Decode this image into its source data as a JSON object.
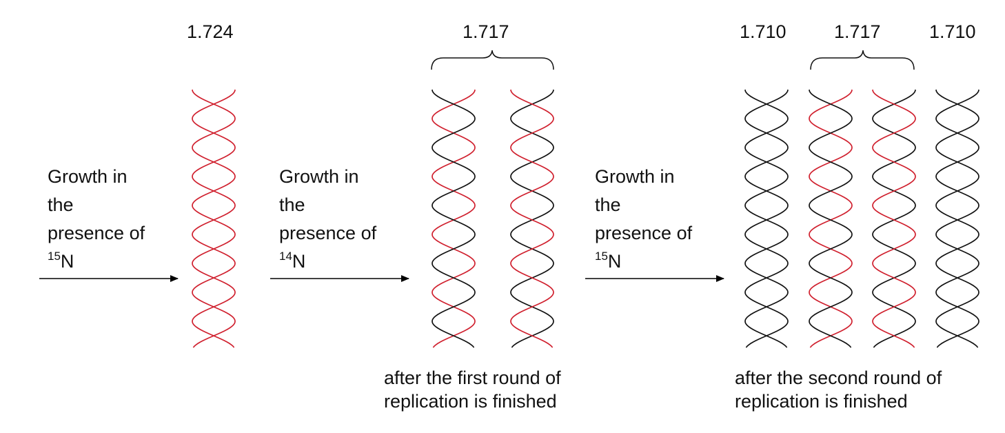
{
  "densities": {
    "initial": "1.724",
    "round1": "1.717",
    "round2_outer_left": "1.710",
    "round2_middle": "1.717",
    "round2_outer_right": "1.710"
  },
  "steps": [
    {
      "line1": "Growth in",
      "line2": "the",
      "line3": "presence of",
      "isotope_mass": "15",
      "isotope_element": "N"
    },
    {
      "line1": "Growth in",
      "line2": "the",
      "line3": "presence of",
      "isotope_mass": "14",
      "isotope_element": "N"
    },
    {
      "line1": "Growth in",
      "line2": "the",
      "line3": "presence of",
      "isotope_mass": "15",
      "isotope_element": "N"
    }
  ],
  "captions": {
    "round1_line1": "after the first round of",
    "round1_line2": "replication is finished",
    "round2_line1": "after the second round of",
    "round2_line2": "replication is finished"
  },
  "colors": {
    "heavy_strand": "#d0202e",
    "light_strand": "#111111",
    "arrow": "#000000"
  },
  "helices": [
    {
      "name": "helix-parental",
      "strand_a": "heavy",
      "strand_b": "heavy"
    },
    {
      "name": "helix-round1-a",
      "strand_a": "heavy",
      "strand_b": "light"
    },
    {
      "name": "helix-round1-b",
      "strand_a": "light",
      "strand_b": "heavy"
    },
    {
      "name": "helix-round2-a",
      "strand_a": "light",
      "strand_b": "light"
    },
    {
      "name": "helix-round2-b",
      "strand_a": "heavy",
      "strand_b": "light"
    },
    {
      "name": "helix-round2-c",
      "strand_a": "light",
      "strand_b": "heavy"
    },
    {
      "name": "helix-round2-d",
      "strand_a": "light",
      "strand_b": "light"
    }
  ]
}
